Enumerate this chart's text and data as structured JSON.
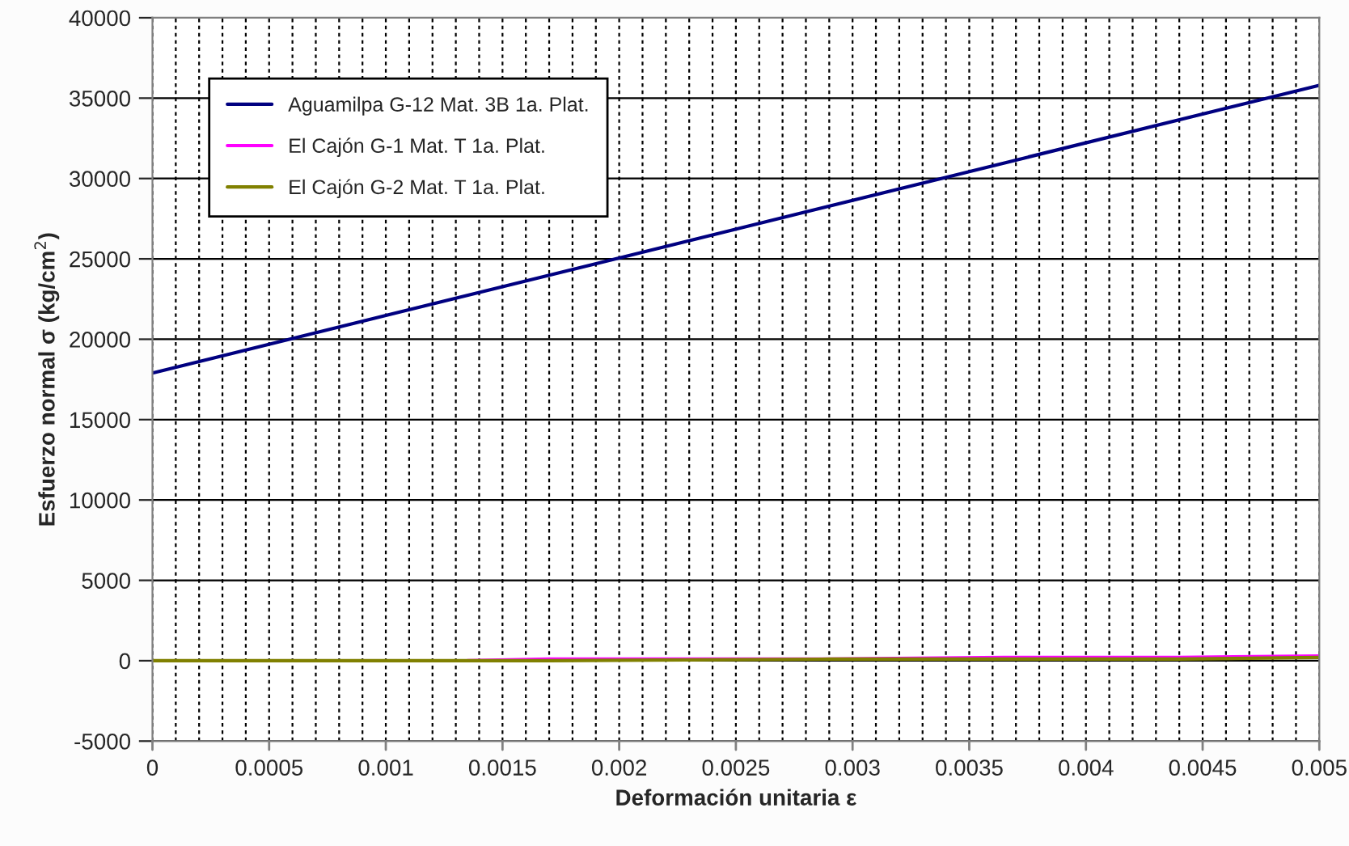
{
  "chart_data": {
    "type": "line",
    "xlabel": "Deformación unitaria ε",
    "ylabel": "Esfuerzo normal σ (kg/cm$^{2}$)",
    "series": [
      {
        "name": "Aguamilpa G-12 Mat. 3B 1a. Plat.",
        "color": "#000080",
        "x": [
          0,
          0.005
        ],
        "values": [
          17900,
          35800
        ]
      },
      {
        "name": "El Cajón G-1 Mat. T 1a. Plat.",
        "color": "#ff00ff",
        "x": [
          0.00135,
          0.0017,
          0.0029,
          0.00365,
          0.0044,
          0.005
        ],
        "values": [
          0,
          100,
          100,
          200,
          200,
          300
        ]
      },
      {
        "name": "El Cajón G-2 Mat. T 1a. Plat.",
        "color": "#808000",
        "x": [
          0,
          0.00135,
          0.0017,
          0.0029,
          0.00365,
          0.0044,
          0.005
        ],
        "values": [
          0,
          0,
          0,
          100,
          100,
          100,
          200
        ]
      }
    ],
    "xlim": [
      0,
      0.005
    ],
    "xticks": [
      0,
      {
        "value": 0.0001,
        "label": null
      },
      {
        "value": 0.0002,
        "label": null
      },
      {
        "value": 0.0003,
        "label": null
      },
      {
        "value": 0.0004,
        "label": null
      },
      0.0005,
      {
        "value": 0.0006,
        "label": null
      },
      {
        "value": 0.0007,
        "label": null
      },
      {
        "value": 0.0008,
        "label": null
      },
      {
        "value": 0.0009,
        "label": null
      },
      0.001,
      {
        "value": 0.0011,
        "label": null
      },
      {
        "value": 0.0012,
        "label": null
      },
      {
        "value": 0.0013,
        "label": null
      },
      {
        "value": 0.0014,
        "label": null
      },
      0.0015,
      {
        "value": 0.0016,
        "label": null
      },
      {
        "value": 0.0017,
        "label": null
      },
      {
        "value": 0.0018,
        "label": null
      },
      {
        "value": 0.0019,
        "label": null
      },
      0.002,
      {
        "value": 0.0021,
        "label": null
      },
      {
        "value": 0.0022,
        "label": null
      },
      {
        "value": 0.0023,
        "label": null
      },
      {
        "value": 0.0024,
        "label": null
      },
      0.0025,
      {
        "value": 0.0026,
        "label": null
      },
      {
        "value": 0.0027,
        "label": null
      },
      {
        "value": 0.0028,
        "label": null
      },
      {
        "value": 0.0029,
        "label": null
      },
      0.003,
      {
        "value": 0.0031,
        "label": null
      },
      {
        "value": 0.0032,
        "label": null
      },
      {
        "value": 0.0033,
        "label": null
      },
      {
        "value": 0.0034,
        "label": null
      },
      0.0035,
      {
        "value": 0.0036,
        "label": null
      },
      {
        "value": 0.0037,
        "label": null
      },
      {
        "value": 0.0038,
        "label": null
      },
      {
        "value": 0.0039,
        "label": null
      },
      0.004,
      {
        "value": 0.0041,
        "label": null
      },
      {
        "value": 0.0042,
        "label": null
      },
      {
        "value": 0.0043,
        "label": null
      },
      {
        "value": 0.0044,
        "label": null
      },
      0.0045,
      {
        "value": 0.0046,
        "label": null
      },
      {
        "value": 0.0047,
        "label": null
      },
      {
        "value": 0.0048,
        "label": null
      },
      {
        "value": 0.0049,
        "label": null
      },
      0.005
    ],
    "ylim": [
      -5000,
      40000
    ],
    "yticks": [
      -5000,
      0,
      5000,
      10000,
      15000,
      20000,
      25000,
      30000,
      35000,
      40000
    ],
    "grid": true,
    "legend": "top left",
    "line_style": "solid",
    "marker": "none"
  }
}
